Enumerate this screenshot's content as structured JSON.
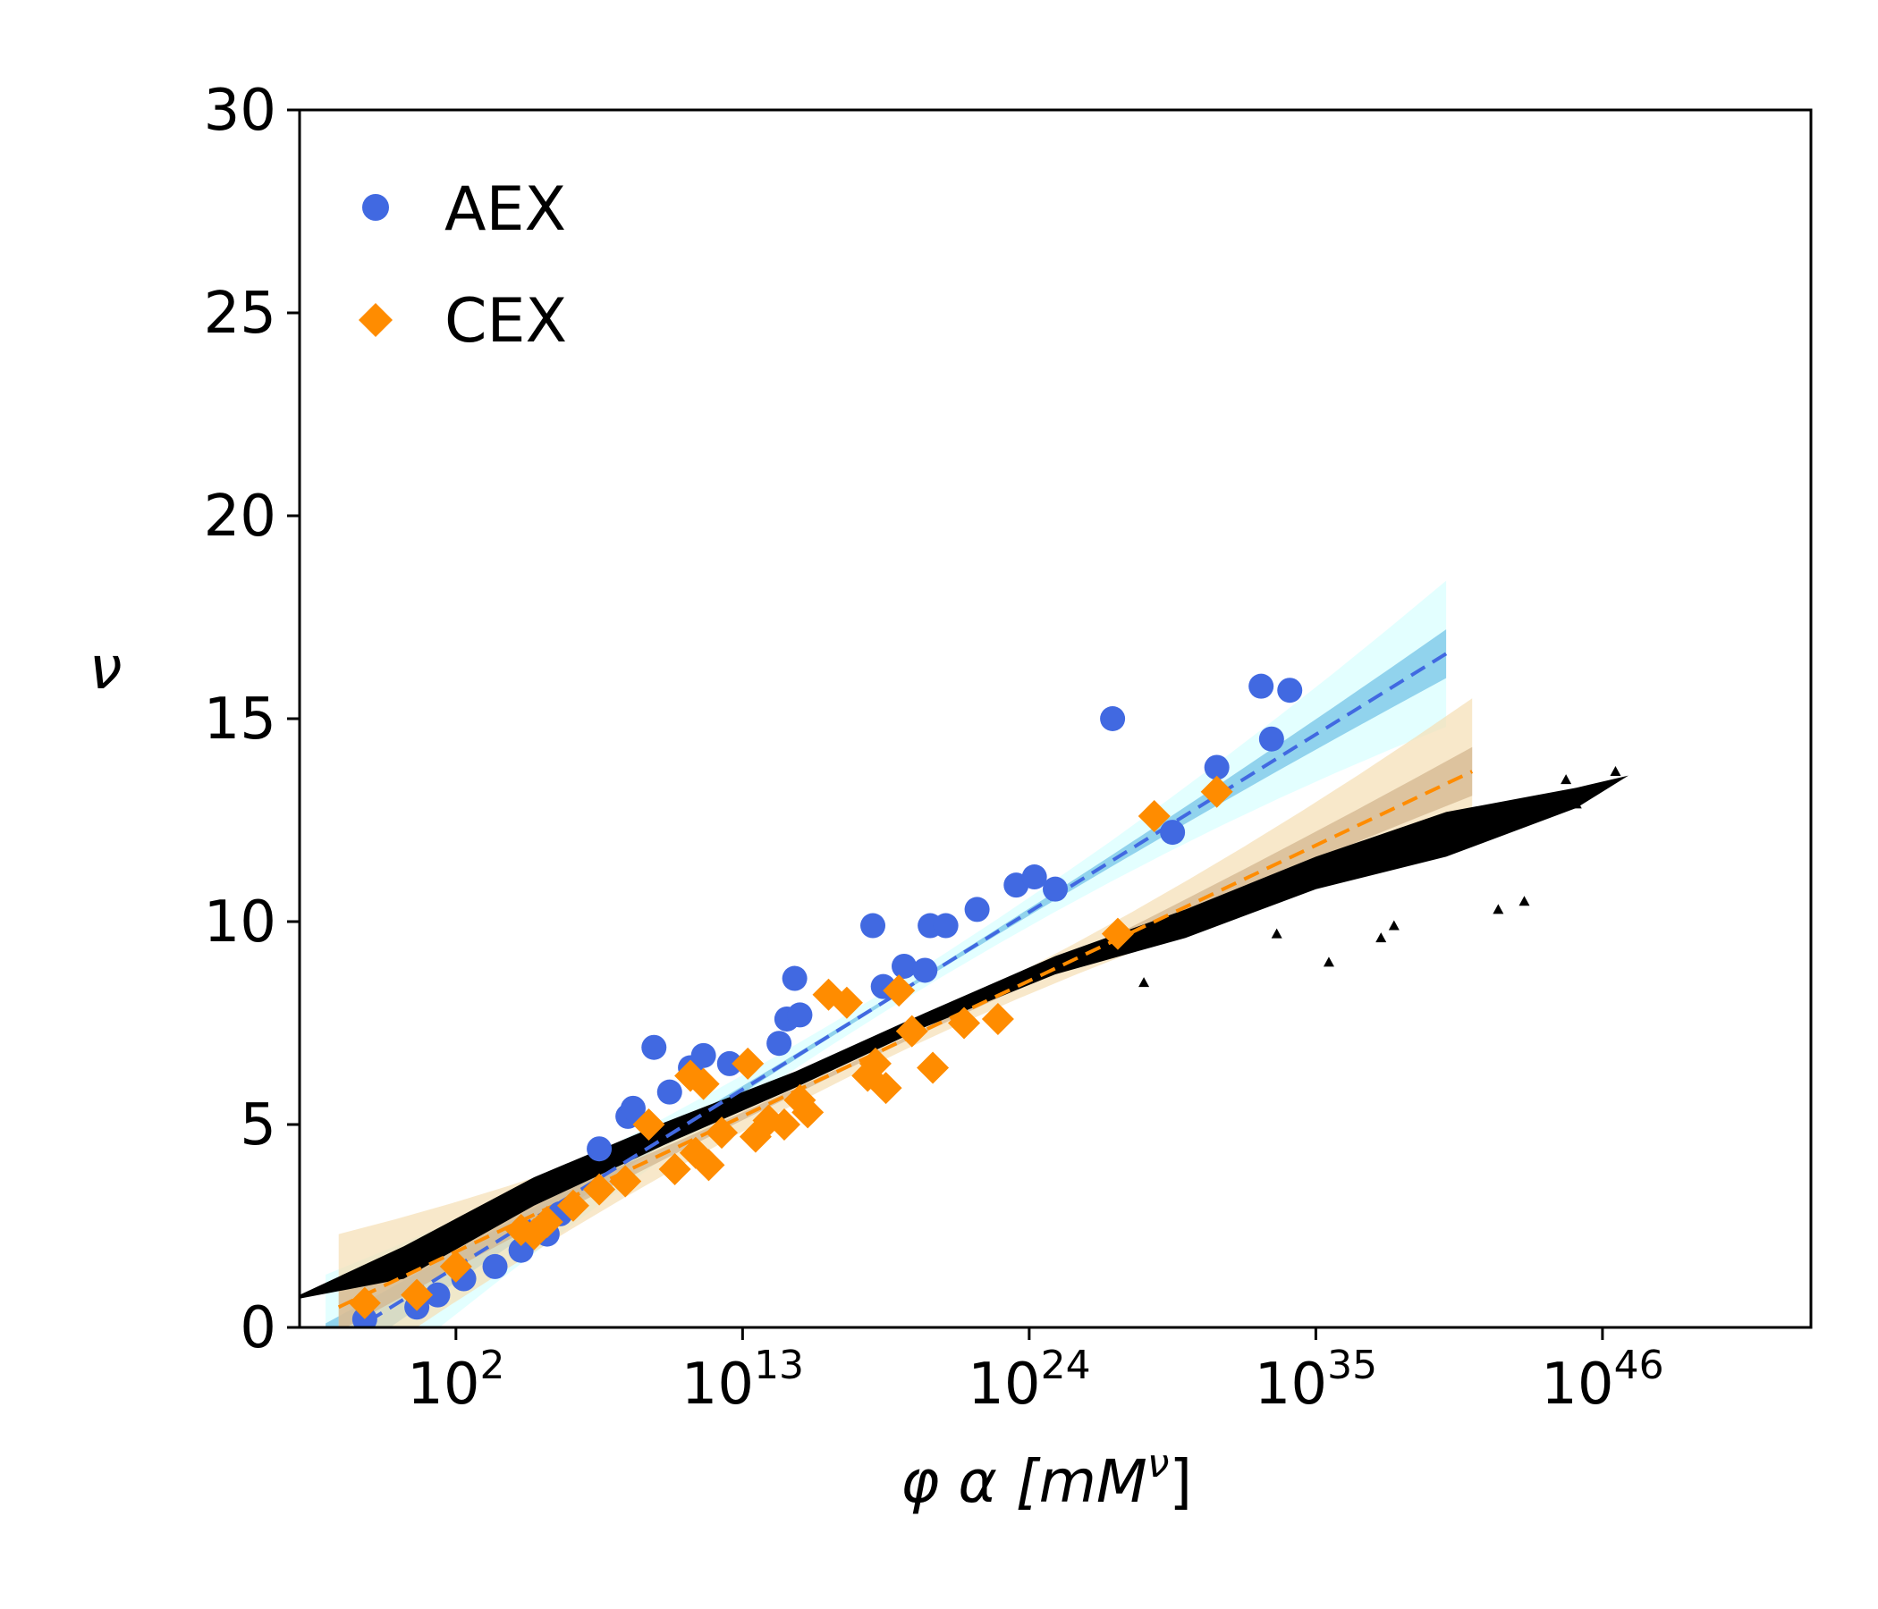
{
  "chart_data": {
    "type": "scatter",
    "xscale": "log10",
    "xlim_exp": [
      -4,
      54
    ],
    "ylim": [
      0,
      30
    ],
    "xticks_exp": [
      2,
      13,
      24,
      35,
      46
    ],
    "xtick_base": "10",
    "yticks": [
      0,
      5,
      10,
      15,
      20,
      25,
      30
    ],
    "xlabel": "φ α  [mM",
    "xlabel_sup": "ν",
    "xlabel_close": "]",
    "ylabel": "ν",
    "grid": false,
    "legend_position": "upper-left",
    "series": [
      {
        "name": "AEX",
        "marker": "circle",
        "color": "#4169e1",
        "fit": {
          "x_exp_range": [
            -3,
            40
          ],
          "y_range": [
            -0.5,
            16.6
          ],
          "color": "#4169e1",
          "inner_band": "#87ceeb",
          "outer_band": "#e0ffff"
        },
        "points": [
          [
            -1.5,
            0.2
          ],
          [
            0.5,
            0.5
          ],
          [
            1.3,
            0.8
          ],
          [
            2.3,
            1.2
          ],
          [
            3.5,
            1.5
          ],
          [
            4.5,
            1.9
          ],
          [
            5.5,
            2.3
          ],
          [
            6,
            2.8
          ],
          [
            7.5,
            4.4
          ],
          [
            8.6,
            5.2
          ],
          [
            8.8,
            5.4
          ],
          [
            9.6,
            6.9
          ],
          [
            10.2,
            5.8
          ],
          [
            11,
            6.4
          ],
          [
            11.5,
            6.7
          ],
          [
            12.5,
            6.5
          ],
          [
            14.4,
            7.0
          ],
          [
            14.7,
            7.6
          ],
          [
            15.2,
            7.7
          ],
          [
            15,
            8.6
          ],
          [
            18,
            9.9
          ],
          [
            18.4,
            8.4
          ],
          [
            19.2,
            8.9
          ],
          [
            20,
            8.8
          ],
          [
            20.2,
            9.9
          ],
          [
            20.8,
            9.9
          ],
          [
            22,
            10.3
          ],
          [
            23.5,
            10.9
          ],
          [
            24.2,
            11.1
          ],
          [
            25,
            10.8
          ],
          [
            27.2,
            15.0
          ],
          [
            29.5,
            12.2
          ],
          [
            31.2,
            13.8
          ],
          [
            32.9,
            15.8
          ],
          [
            33.3,
            14.5
          ],
          [
            34,
            15.7
          ]
        ]
      },
      {
        "name": "CEX",
        "marker": "diamond",
        "color": "#ff8c00",
        "fit": {
          "x_exp_range": [
            -2.5,
            41
          ],
          "y_range": [
            0.5,
            13.7
          ],
          "color": "#ff8c00",
          "inner_band": "#d2b48c",
          "outer_band": "#f5deb3"
        },
        "points": [
          [
            -1.5,
            0.6
          ],
          [
            0.5,
            0.8
          ],
          [
            2,
            1.5
          ],
          [
            4.5,
            2.4
          ],
          [
            5,
            2.3
          ],
          [
            5.5,
            2.6
          ],
          [
            6.5,
            3.0
          ],
          [
            7.5,
            3.4
          ],
          [
            8.5,
            3.6
          ],
          [
            9.4,
            5.0
          ],
          [
            10.4,
            3.9
          ],
          [
            11.2,
            4.3
          ],
          [
            11.5,
            6.0
          ],
          [
            11,
            6.2
          ],
          [
            11.7,
            4.0
          ],
          [
            12.2,
            4.8
          ],
          [
            13.2,
            6.5
          ],
          [
            13.5,
            4.7
          ],
          [
            14,
            5.1
          ],
          [
            14.6,
            5.0
          ],
          [
            15.2,
            5.6
          ],
          [
            15.5,
            5.3
          ],
          [
            16.3,
            8.2
          ],
          [
            17,
            8.0
          ],
          [
            17.8,
            6.2
          ],
          [
            18.1,
            6.5
          ],
          [
            18.5,
            5.9
          ],
          [
            19,
            8.3
          ],
          [
            19.5,
            7.3
          ],
          [
            20.3,
            6.4
          ],
          [
            21.5,
            7.5
          ],
          [
            22.8,
            7.6
          ],
          [
            27.4,
            9.7
          ],
          [
            28.8,
            12.6
          ],
          [
            31.2,
            13.2
          ]
        ]
      }
    ],
    "reference_cloud": {
      "marker": "triangle",
      "color": "#000000",
      "curve": [
        [
          -4.5,
          0.65
        ],
        [
          0,
          2.0
        ],
        [
          5,
          3.7
        ],
        [
          10,
          5.05
        ],
        [
          15,
          6.3
        ],
        [
          20,
          7.75
        ],
        [
          25,
          9.15
        ],
        [
          30,
          10.3
        ],
        [
          35,
          11.6
        ],
        [
          40,
          12.7
        ],
        [
          45,
          13.3
        ],
        [
          47,
          13.6
        ]
      ],
      "lower_curve": [
        [
          0,
          1.2
        ],
        [
          5,
          3.0
        ],
        [
          10,
          4.5
        ],
        [
          15,
          5.9
        ],
        [
          20,
          7.4
        ],
        [
          25,
          8.7
        ],
        [
          30,
          9.6
        ],
        [
          35,
          10.8
        ],
        [
          40,
          11.6
        ],
        [
          45,
          12.8
        ]
      ],
      "outliers": [
        [
          28.4,
          8.5
        ],
        [
          33.5,
          9.7
        ],
        [
          35.5,
          9.0
        ],
        [
          37.5,
          9.6
        ],
        [
          38,
          9.9
        ],
        [
          42,
          10.3
        ],
        [
          43,
          10.5
        ],
        [
          44.6,
          13.5
        ],
        [
          45,
          12.9
        ],
        [
          46.5,
          13.7
        ]
      ]
    }
  }
}
